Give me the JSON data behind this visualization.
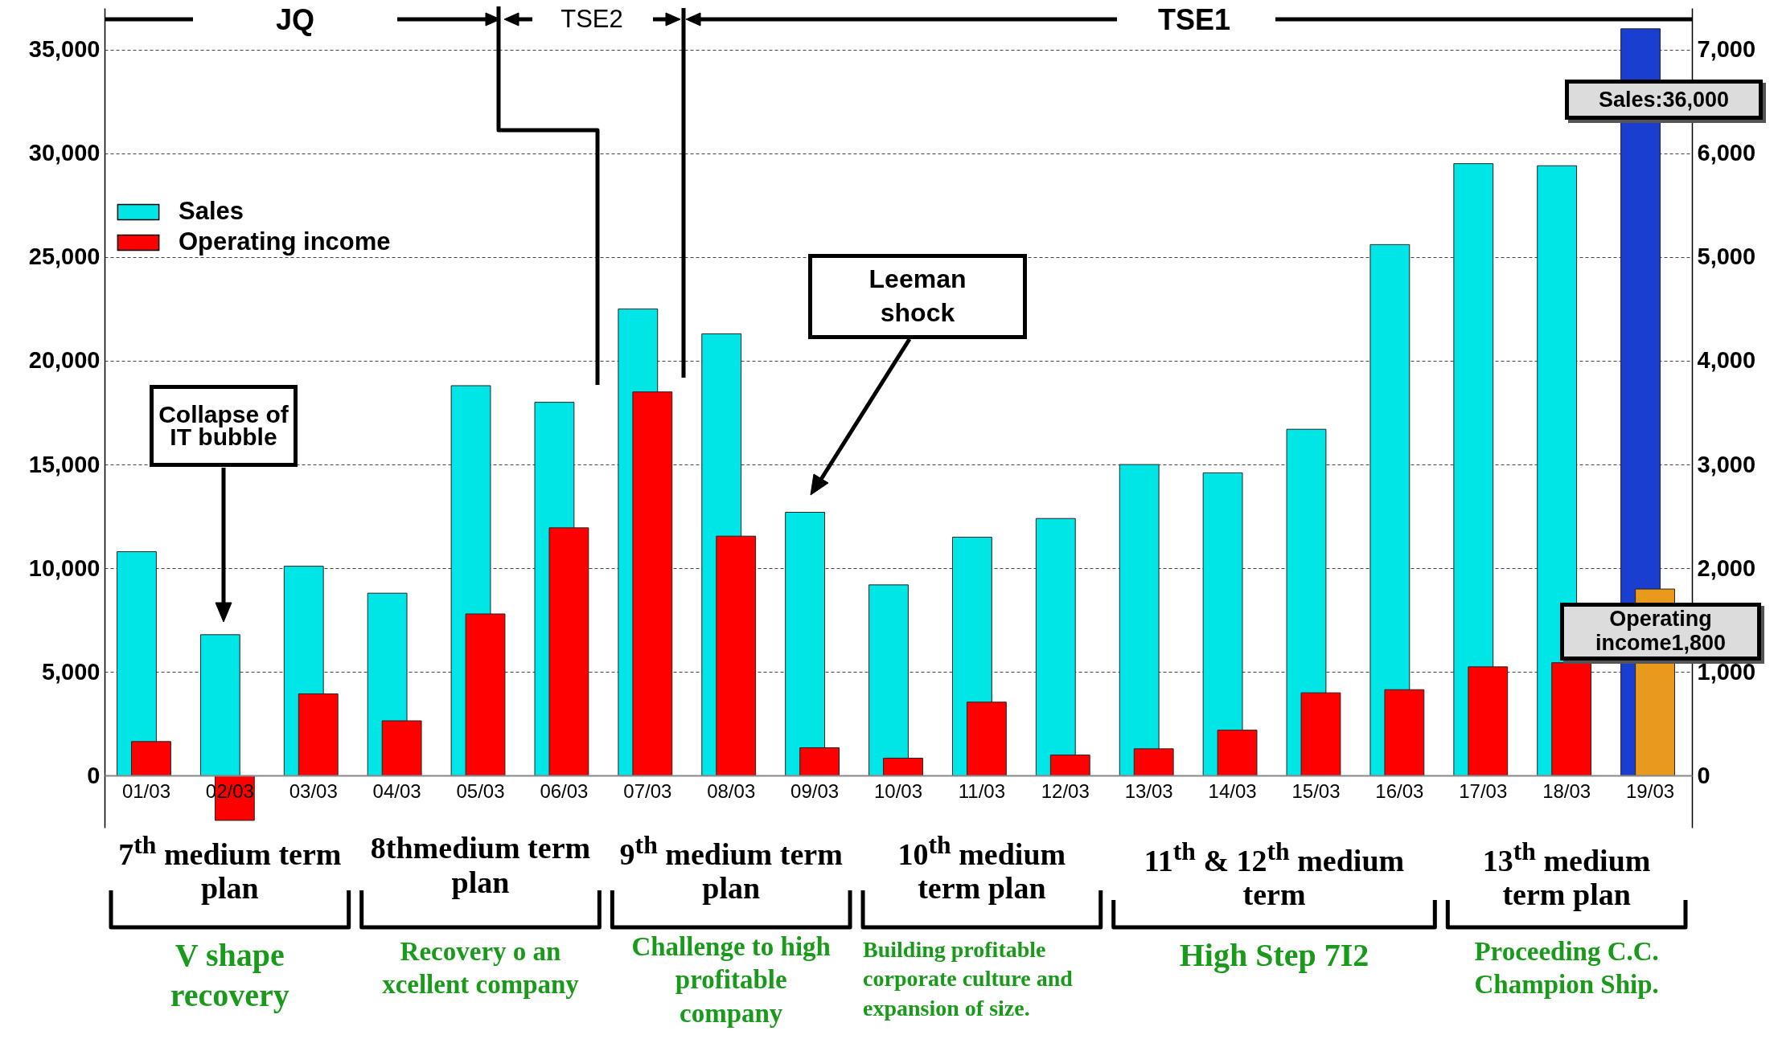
{
  "chart_data": {
    "type": "bar",
    "categories": [
      "01/03",
      "02/03",
      "03/03",
      "04/03",
      "05/03",
      "06/03",
      "07/03",
      "08/03",
      "09/03",
      "10/03",
      "11/03",
      "12/03",
      "13/03",
      "14/03",
      "15/03",
      "16/03",
      "17/03",
      "18/03",
      "19/03"
    ],
    "series": [
      {
        "name": "Sales",
        "color": "#00e6e6",
        "axis": "y",
        "colors": [
          "#00e6e6",
          "#00e6e6",
          "#00e6e6",
          "#00e6e6",
          "#00e6e6",
          "#00e6e6",
          "#00e6e6",
          "#00e6e6",
          "#00e6e6",
          "#00e6e6",
          "#00e6e6",
          "#00e6e6",
          "#00e6e6",
          "#00e6e6",
          "#00e6e6",
          "#00e6e6",
          "#00e6e6",
          "#00e6e6",
          "#1a3fd0"
        ],
        "values": [
          10800,
          6800,
          10100,
          8800,
          18800,
          18000,
          22500,
          21300,
          12700,
          9200,
          11500,
          12400,
          15000,
          14600,
          16700,
          25600,
          29500,
          29400,
          36000
        ]
      },
      {
        "name": "Operating income",
        "color": "#ff0000",
        "axis": "y2",
        "colors": [
          "#ff0000",
          "#ff0000",
          "#ff0000",
          "#ff0000",
          "#ff0000",
          "#ff0000",
          "#ff0000",
          "#ff0000",
          "#ff0000",
          "#ff0000",
          "#ff0000",
          "#ff0000",
          "#ff0000",
          "#ff0000",
          "#ff0000",
          "#ff0000",
          "#ff0000",
          "#ff0000",
          "#e89a1c"
        ],
        "values": [
          330,
          -430,
          790,
          530,
          1560,
          2390,
          3700,
          2310,
          270,
          170,
          710,
          200,
          260,
          440,
          800,
          830,
          1050,
          1090,
          1800
        ]
      }
    ],
    "ylim": [
      -2500,
      37000
    ],
    "yticks": [
      0,
      {
        "value": 5000,
        "label": "5,000"
      },
      {
        "value": 10000,
        "label": "10,000"
      },
      {
        "value": 15000,
        "label": "15,000"
      },
      {
        "value": 20000,
        "label": "20,000"
      },
      {
        "value": 25000,
        "label": "25,000"
      },
      {
        "value": 30000,
        "label": "30,000"
      },
      {
        "value": 35000,
        "label": "35,000"
      }
    ],
    "y2lim": [
      -500,
      7400
    ],
    "y2ticks": [
      0,
      {
        "value": 1000,
        "label": "1,000"
      },
      {
        "value": 2000,
        "label": "2,000"
      },
      {
        "value": 3000,
        "label": "3,000"
      },
      {
        "value": 4000,
        "label": "4,000"
      },
      {
        "value": 5000,
        "label": "5,000"
      },
      {
        "value": 6000,
        "label": "6,000"
      },
      {
        "value": 7000,
        "label": "7,000"
      }
    ],
    "grid": "y",
    "legend": "top left",
    "annotations": [
      "JQ",
      "TSE2",
      "TSE1",
      "Collapse of IT bubble",
      "Leeman shock",
      "Sales:36,000",
      "Operating income1,800",
      "7$^{th}$ medium term plan",
      "8thmedium term plan",
      "9$^{th}$ medium term plan",
      "10$^{th}$ medium term plan",
      "11$^{th}$ & 12$^{th}$ medium term",
      "13$^{th}$ medium term plan",
      "V shape recovery",
      "Recovery o an xcellent company",
      "Challenge to high profitable company",
      "Building profitable corporate culture and expansion of size.",
      "High Step 7I2",
      "Proceeding C.C. Champion Ship."
    ]
  }
}
